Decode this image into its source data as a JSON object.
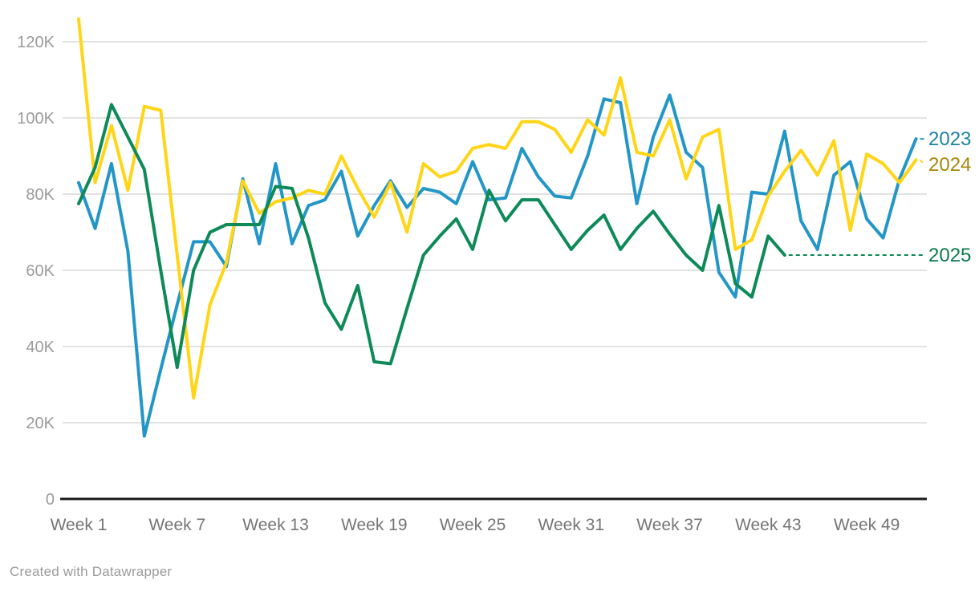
{
  "chart_data": {
    "type": "line",
    "title": "",
    "xlabel": "",
    "ylabel": "",
    "x_unit": "week",
    "weeks": 52,
    "ylim": [
      0,
      130000
    ],
    "grid": true,
    "legend_position": "right-of-line-ends",
    "yticks": [
      {
        "value": 0,
        "label": "0"
      },
      {
        "value": 20000,
        "label": "20K"
      },
      {
        "value": 40000,
        "label": "40K"
      },
      {
        "value": 60000,
        "label": "60K"
      },
      {
        "value": 80000,
        "label": "80K"
      },
      {
        "value": 100000,
        "label": "100K"
      },
      {
        "value": 120000,
        "label": "120K"
      }
    ],
    "xticks": [
      {
        "week": 1,
        "label": "Week 1"
      },
      {
        "week": 7,
        "label": "Week 7"
      },
      {
        "week": 13,
        "label": "Week 13"
      },
      {
        "week": 19,
        "label": "Week 19"
      },
      {
        "week": 25,
        "label": "Week 25"
      },
      {
        "week": 31,
        "label": "Week 31"
      },
      {
        "week": 37,
        "label": "Week 37"
      },
      {
        "week": 43,
        "label": "Week 43"
      },
      {
        "week": 49,
        "label": "Week 49"
      }
    ],
    "series": [
      {
        "name": "2023",
        "color": "#2396c8",
        "label_color": "#1d81a2",
        "start_week": 1,
        "values": [
          83000,
          71000,
          88000,
          65000,
          16500,
          34000,
          51000,
          67500,
          67500,
          61000,
          84000,
          67000,
          88000,
          67000,
          77000,
          78500,
          86000,
          69000,
          77000,
          83500,
          76500,
          81500,
          80500,
          77500,
          88500,
          78500,
          79000,
          92000,
          84500,
          79500,
          79000,
          90000,
          105000,
          104000,
          77500,
          95000,
          106000,
          91000,
          87000,
          59500,
          53000,
          80500,
          80000,
          96500,
          73000,
          65500,
          85000,
          88500,
          73500,
          68500,
          84000,
          94500
        ]
      },
      {
        "name": "2024",
        "color": "#ffd516",
        "label_color": "#a8870e",
        "start_week": 1,
        "values": [
          126000,
          83000,
          98000,
          81000,
          103000,
          102000,
          64000,
          26500,
          51000,
          62000,
          83500,
          75000,
          78000,
          79000,
          81000,
          80000,
          90000,
          81500,
          74000,
          83000,
          70000,
          88000,
          84500,
          86000,
          92000,
          93000,
          92000,
          99000,
          99000,
          97000,
          91000,
          99500,
          95500,
          110500,
          91000,
          90000,
          99500,
          84000,
          95000,
          97000,
          65500,
          68000,
          79500,
          86000,
          91500,
          85000,
          94000,
          70500,
          90500,
          88000,
          83000,
          89000
        ]
      },
      {
        "name": "2025",
        "color": "#0d8a58",
        "label_color": "#0b7b4c",
        "start_week": 1,
        "dashed_leader_to_label": true,
        "values": [
          77500,
          87000,
          103500,
          95000,
          86500,
          60000,
          34500,
          60000,
          70000,
          72000,
          72000,
          72000,
          82000,
          81500,
          68500,
          51500,
          44500,
          56000,
          36000,
          35500,
          50000,
          64000,
          69000,
          73500,
          65500,
          81000,
          73000,
          78500,
          78500,
          72000,
          65500,
          70500,
          74500,
          65500,
          71000,
          75500,
          69500,
          64000,
          60000,
          77000,
          56500,
          53000,
          69000,
          64000
        ]
      }
    ]
  },
  "colors": {
    "gridline": "#e2e2e2",
    "axis": "#1a1a1a",
    "ytick_text": "#9b9b9b",
    "xtick_text": "#757575",
    "credit_text": "#9b9b9b"
  },
  "footer": {
    "credit": "Created with Datawrapper"
  }
}
